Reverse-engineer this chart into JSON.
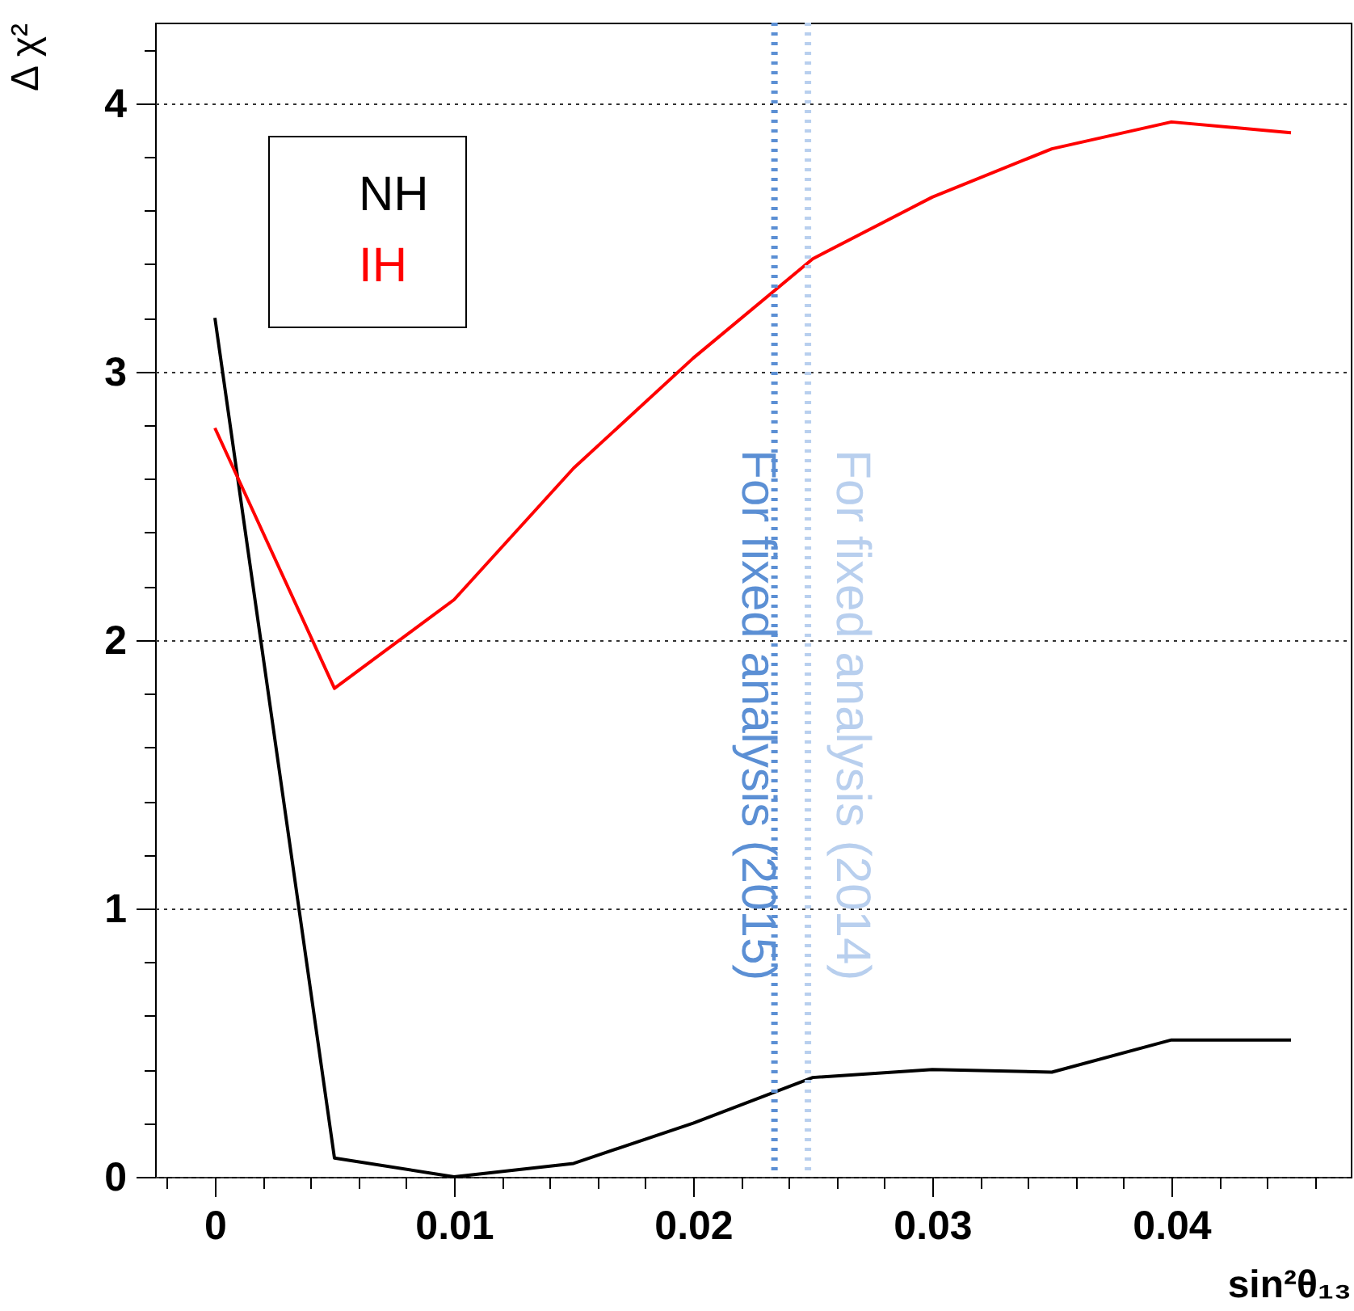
{
  "chart_data": {
    "type": "line",
    "xlabel": "sin²θ₁₃",
    "ylabel": "Δ χ²",
    "x": [
      0,
      0.005,
      0.01,
      0.015,
      0.02,
      0.025,
      0.03,
      0.035,
      0.04,
      0.045
    ],
    "series": [
      {
        "name": "NH",
        "color": "#000000",
        "values": [
          3.2,
          0.07,
          0,
          0.05,
          0.2,
          0.37,
          0.4,
          0.39,
          0.51,
          0.51
        ]
      },
      {
        "name": "IH",
        "color": "#ff0000",
        "values": [
          2.79,
          1.82,
          2.15,
          2.64,
          3.05,
          3.42,
          3.65,
          3.83,
          3.93,
          3.89
        ]
      }
    ],
    "xlim": [
      -0.0025,
      0.0475
    ],
    "ylim": [
      0,
      4.3
    ],
    "xticks": [
      {
        "value": -0.002,
        "label": null
      },
      0,
      {
        "value": 0.002,
        "label": null
      },
      {
        "value": 0.004,
        "label": null
      },
      {
        "value": 0.006,
        "label": null
      },
      {
        "value": 0.008,
        "label": null
      },
      0.01,
      {
        "value": 0.012,
        "label": null
      },
      {
        "value": 0.014,
        "label": null
      },
      {
        "value": 0.016,
        "label": null
      },
      {
        "value": 0.018,
        "label": null
      },
      0.02,
      {
        "value": 0.022,
        "label": null
      },
      {
        "value": 0.024,
        "label": null
      },
      {
        "value": 0.026,
        "label": null
      },
      {
        "value": 0.028,
        "label": null
      },
      0.03,
      {
        "value": 0.032,
        "label": null
      },
      {
        "value": 0.034,
        "label": null
      },
      {
        "value": 0.036,
        "label": null
      },
      {
        "value": 0.038,
        "label": null
      },
      0.04,
      {
        "value": 0.042,
        "label": null
      },
      {
        "value": 0.044,
        "label": null
      },
      {
        "value": 0.046,
        "label": null
      }
    ],
    "yticks": [
      0,
      {
        "value": 0.2,
        "label": null
      },
      {
        "value": 0.4,
        "label": null
      },
      {
        "value": 0.6,
        "label": null
      },
      {
        "value": 0.8,
        "label": null
      },
      1,
      {
        "value": 1.2,
        "label": null
      },
      {
        "value": 1.4,
        "label": null
      },
      {
        "value": 1.6,
        "label": null
      },
      {
        "value": 1.8,
        "label": null
      },
      2,
      {
        "value": 2.2,
        "label": null
      },
      {
        "value": 2.4,
        "label": null
      },
      {
        "value": 2.6,
        "label": null
      },
      {
        "value": 2.8,
        "label": null
      },
      3,
      {
        "value": 3.2,
        "label": null
      },
      {
        "value": 3.4,
        "label": null
      },
      {
        "value": 3.6,
        "label": null
      },
      {
        "value": 3.8,
        "label": null
      },
      4,
      {
        "value": 4.2,
        "label": null
      }
    ],
    "grid": "y",
    "legend": "top left",
    "marker": "none",
    "line_style": "solid",
    "ref_lines": [
      {
        "axis": "x",
        "value": 0.0234,
        "label": "For fixed analysis (2015)",
        "color": "#5b8fd4",
        "line_style": "dotted"
      },
      {
        "axis": "x",
        "value": 0.0248,
        "label": "For fixed analysis (2014)",
        "color": "#b8cfee",
        "line_style": "dotted"
      }
    ]
  }
}
